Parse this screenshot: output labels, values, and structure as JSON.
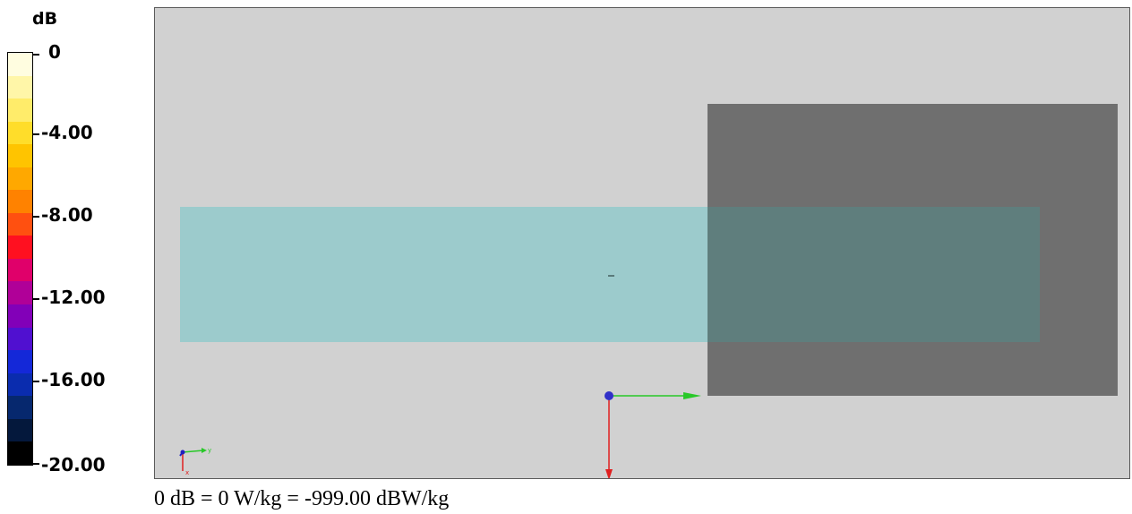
{
  "legend": {
    "unit": "dB",
    "ticks": [
      "0",
      "-4.00",
      "-8.00",
      "-12.00",
      "-16.00",
      "-20.00"
    ],
    "colors": [
      "#fffde0",
      "#fff6a8",
      "#ffec6a",
      "#ffdd2a",
      "#ffc400",
      "#ffa800",
      "#ff8200",
      "#ff5010",
      "#ff1020",
      "#e0006a",
      "#b00098",
      "#8200b8",
      "#5010d0",
      "#1428d8",
      "#0a2cae",
      "#06286e",
      "#04183c",
      "#000000"
    ]
  },
  "viewport": {
    "background": "#d1d1d1",
    "measurement_plane_color": "#9ccbcc",
    "phantom_color": "#6f6f6f",
    "overlap_color": "#5f7e7d"
  },
  "caption": "0 dB = 0 W/kg = -999.00 dBW/kg"
}
